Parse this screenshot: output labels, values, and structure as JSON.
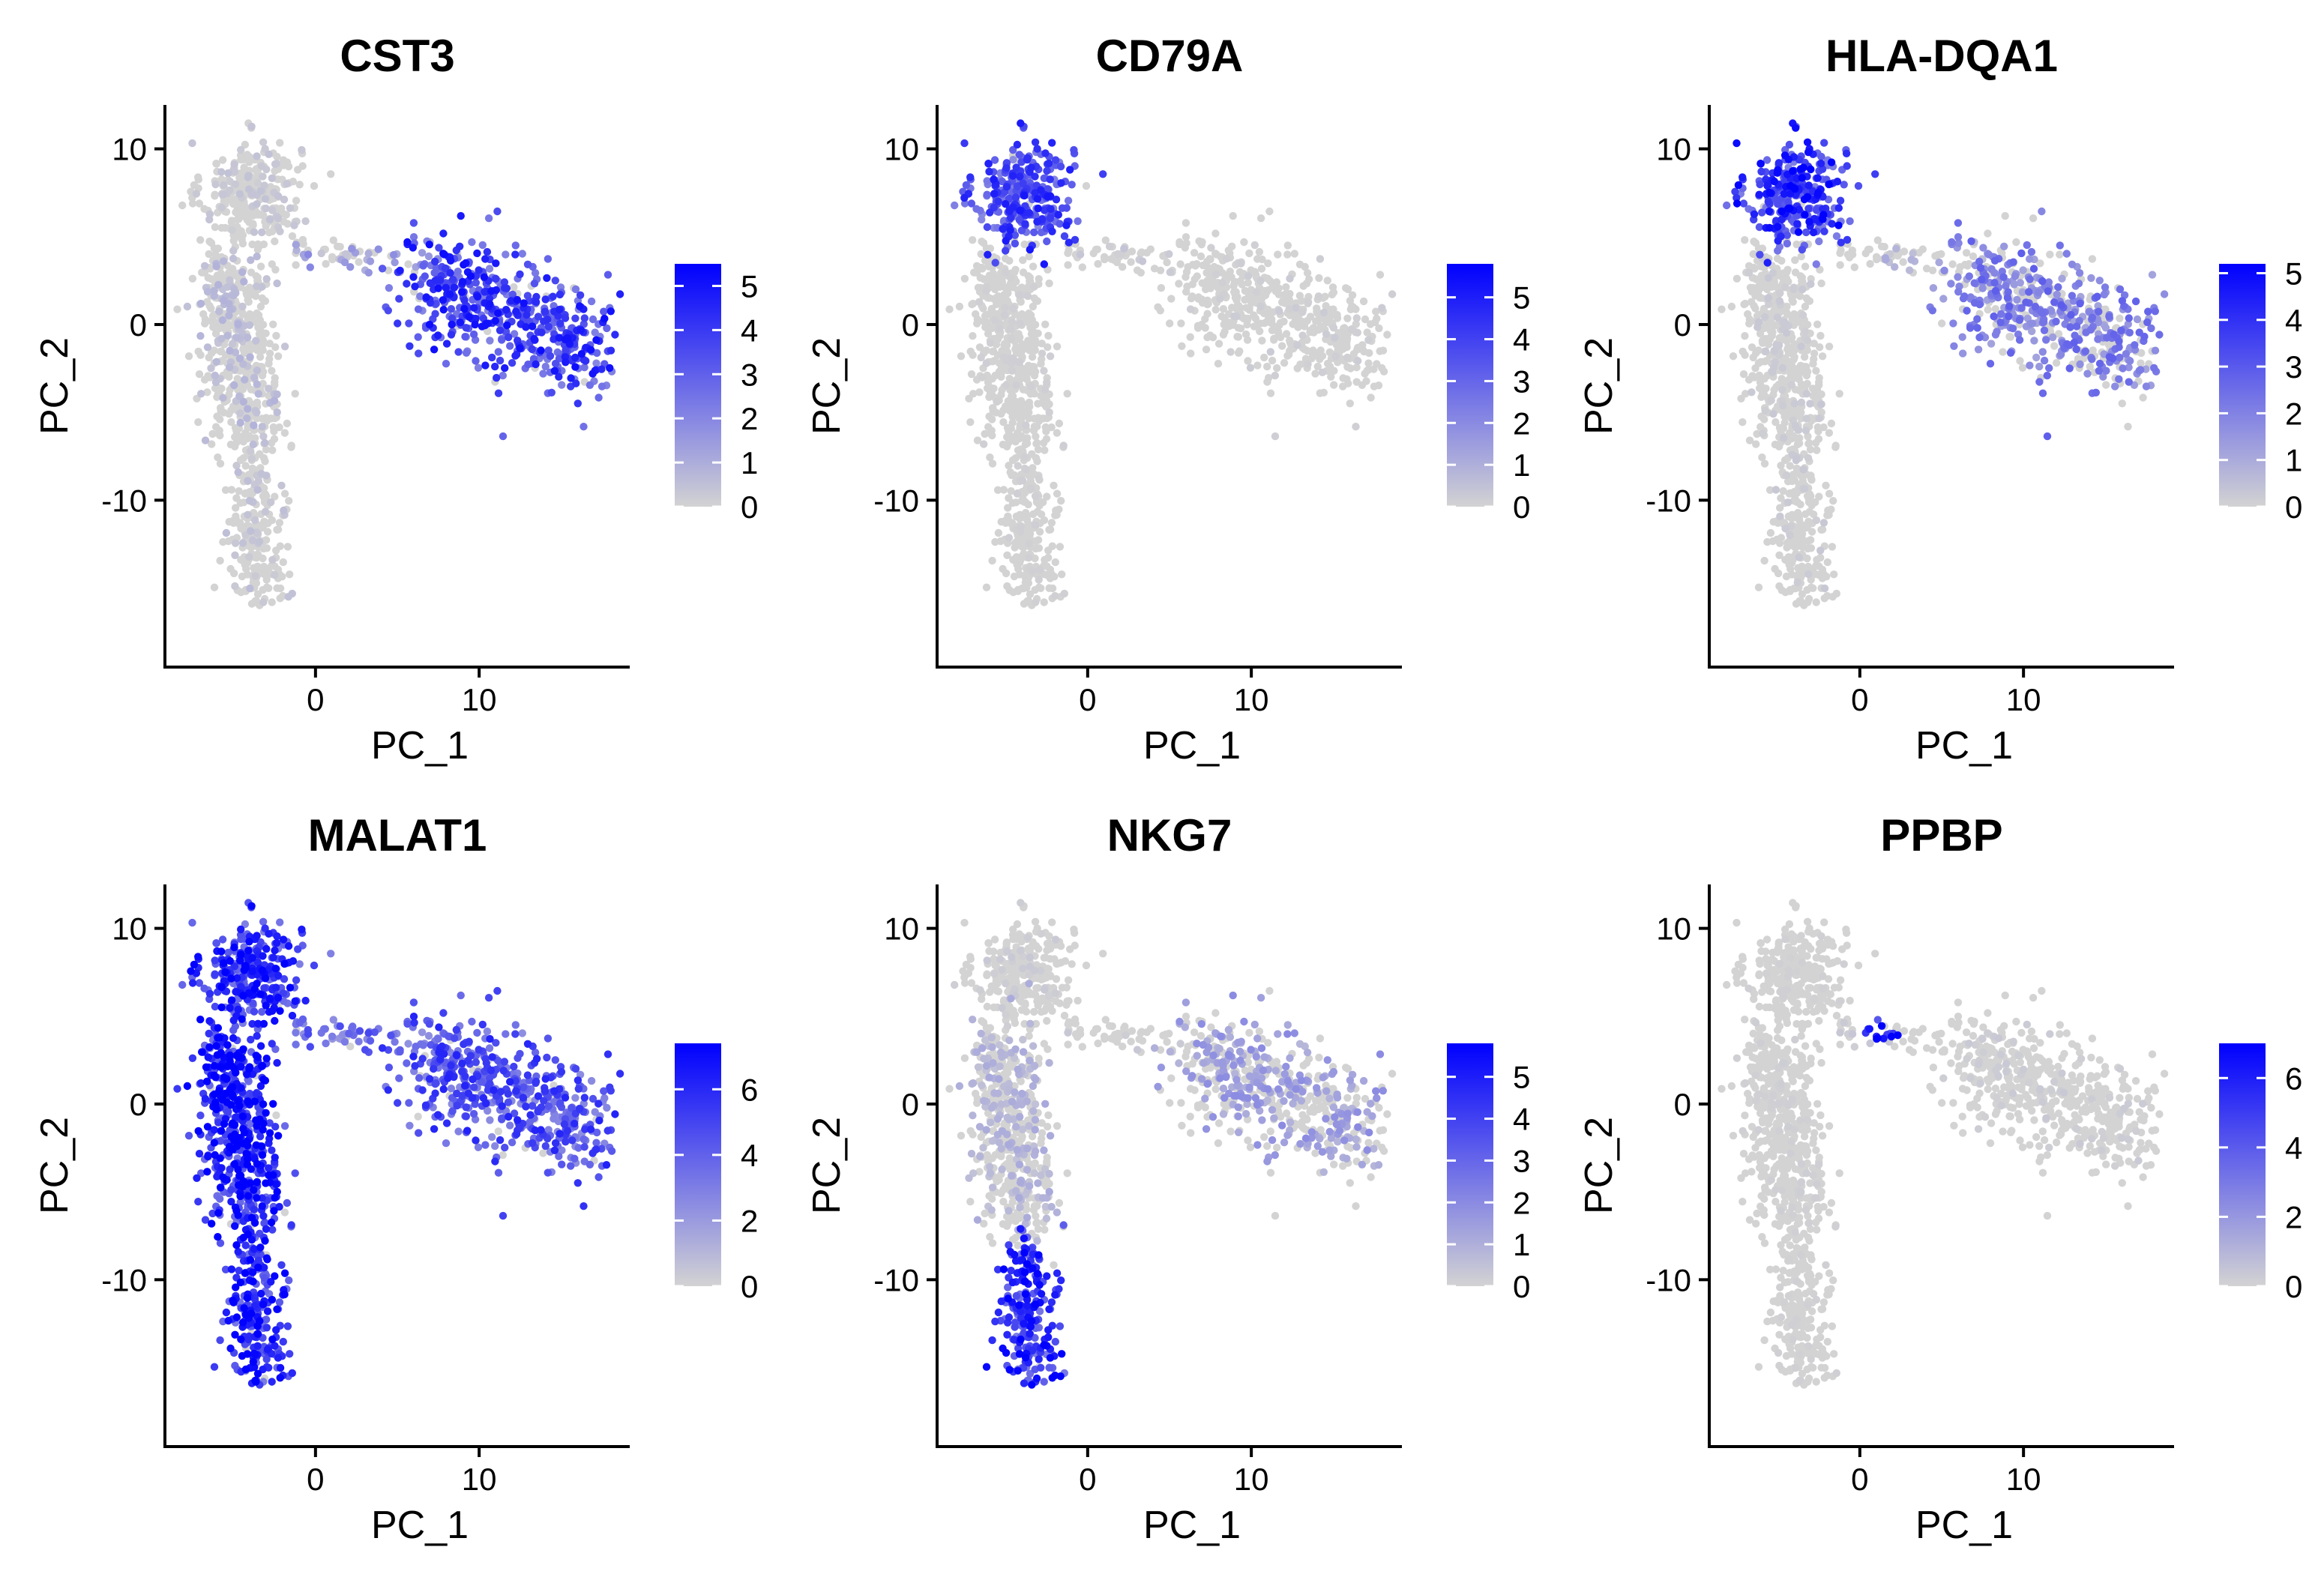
{
  "chart_data": [
    {
      "type": "scatter",
      "title": "CST3",
      "xlabel": "PC_1",
      "ylabel": "PC_2",
      "xticks": [
        0,
        10
      ],
      "yticks": [
        -10,
        0,
        10
      ],
      "xlim": [
        -9.2,
        19.2
      ],
      "ylim": [
        -19.5,
        12.5
      ],
      "legend_ticks": [
        0,
        1,
        2,
        3,
        4,
        5
      ],
      "legend_max": 5.5,
      "color_low": "#d3d3d3",
      "color_high": "#0000ff",
      "expression_pattern": {
        "b_cells": 0.3,
        "tcells_upper": 0.6,
        "tcells_lower": 0.4,
        "myeloid": 3.6,
        "bridge": 1.4,
        "platelets": 0.3
      },
      "grid": false
    },
    {
      "type": "scatter",
      "title": "CD79A",
      "xlabel": "PC_1",
      "ylabel": "PC_2",
      "xticks": [
        0,
        10
      ],
      "yticks": [
        -10,
        0,
        10
      ],
      "xlim": [
        -9.2,
        19.2
      ],
      "ylim": [
        -19.5,
        12.5
      ],
      "legend_ticks": [
        0,
        1,
        2,
        3,
        4,
        5
      ],
      "legend_max": 5.8,
      "color_low": "#d3d3d3",
      "color_high": "#0000ff",
      "expression_pattern": {
        "b_cells": 3.6,
        "tcells_upper": 0.1,
        "tcells_lower": 0.1,
        "myeloid": 0.15,
        "bridge": 0.3,
        "platelets": 0.1
      },
      "grid": false
    },
    {
      "type": "scatter",
      "title": "HLA-DQA1",
      "xlabel": "PC_1",
      "ylabel": "PC_2",
      "xticks": [
        0,
        10
      ],
      "yticks": [
        -10,
        0,
        10
      ],
      "xlim": [
        -9.2,
        19.2
      ],
      "ylim": [
        -19.5,
        12.5
      ],
      "legend_ticks": [
        0,
        1,
        2,
        3,
        4,
        5
      ],
      "legend_max": 5.2,
      "color_low": "#d3d3d3",
      "color_high": "#0000ff",
      "expression_pattern": {
        "b_cells": 3.7,
        "tcells_upper": 0.2,
        "tcells_lower": 0.2,
        "myeloid": 2.0,
        "bridge": 0.8,
        "platelets": 0.2
      },
      "grid": false
    },
    {
      "type": "scatter",
      "title": "MALAT1",
      "xlabel": "PC_1",
      "ylabel": "PC_2",
      "xticks": [
        0,
        10
      ],
      "yticks": [
        -10,
        0,
        10
      ],
      "xlim": [
        -9.2,
        19.2
      ],
      "ylim": [
        -19.5,
        12.5
      ],
      "legend_ticks": [
        0,
        2,
        4,
        6
      ],
      "legend_max": 7.4,
      "color_low": "#d3d3d3",
      "color_high": "#0000ff",
      "expression_pattern": {
        "b_cells": 5.2,
        "tcells_upper": 6.0,
        "tcells_lower": 5.6,
        "myeloid": 4.3,
        "bridge": 3.4,
        "platelets": 3.0
      },
      "grid": false
    },
    {
      "type": "scatter",
      "title": "NKG7",
      "xlabel": "PC_1",
      "ylabel": "PC_2",
      "xticks": [
        0,
        10
      ],
      "yticks": [
        -10,
        0,
        10
      ],
      "xlim": [
        -9.2,
        19.2
      ],
      "ylim": [
        -19.5,
        12.5
      ],
      "legend_ticks": [
        0,
        1,
        2,
        3,
        4,
        5
      ],
      "legend_max": 5.8,
      "color_low": "#d3d3d3",
      "color_high": "#0000ff",
      "expression_pattern": {
        "b_cells": 0.2,
        "tcells_upper": 0.8,
        "tcells_lower": 4.2,
        "myeloid": 1.4,
        "bridge": 0.3,
        "platelets": 0.2
      },
      "grid": false
    },
    {
      "type": "scatter",
      "title": "PPBP",
      "xlabel": "PC_1",
      "ylabel": "PC_2",
      "xticks": [
        0,
        10
      ],
      "yticks": [
        -10,
        0,
        10
      ],
      "xlim": [
        -9.2,
        19.2
      ],
      "ylim": [
        -19.5,
        12.5
      ],
      "legend_ticks": [
        0,
        2,
        4,
        6
      ],
      "legend_max": 7.0,
      "color_low": "#d3d3d3",
      "color_high": "#0000ff",
      "expression_pattern": {
        "b_cells": 0.1,
        "tcells_upper": 0.15,
        "tcells_lower": 0.1,
        "myeloid": 0.25,
        "bridge": 0.3,
        "platelets": 6.5
      },
      "grid": false
    }
  ]
}
